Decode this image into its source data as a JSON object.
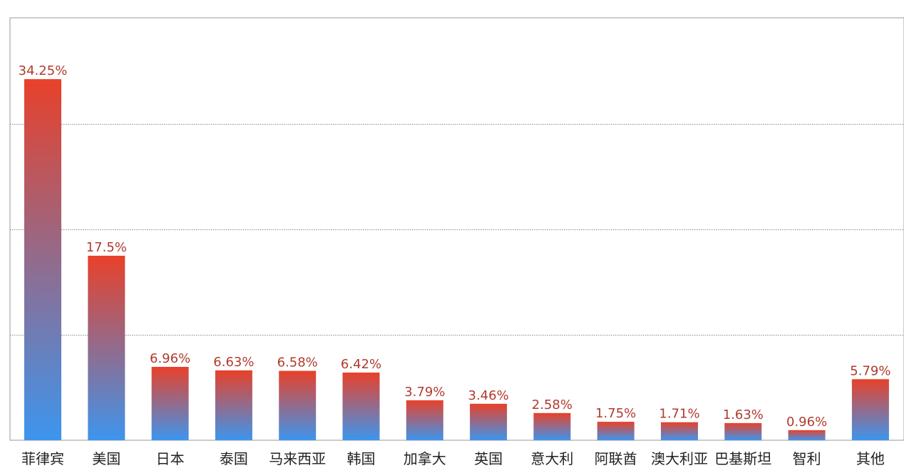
{
  "chart_data": {
    "type": "bar",
    "categories": [
      "菲律宾",
      "美国",
      "日本",
      "泰国",
      "马来西亚",
      "韩国",
      "加拿大",
      "英国",
      "意大利",
      "阿联酋",
      "澳大利亚",
      "巴基斯坦",
      "智利",
      "其他"
    ],
    "values": [
      34.25,
      17.5,
      6.96,
      6.63,
      6.58,
      6.42,
      3.79,
      3.46,
      2.58,
      1.75,
      1.71,
      1.63,
      0.96,
      5.79
    ],
    "value_labels": [
      "34.25%",
      "17.5%",
      "6.96%",
      "6.63%",
      "6.58%",
      "6.42%",
      "3.79%",
      "3.46%",
      "2.58%",
      "1.75%",
      "1.71%",
      "1.63%",
      "0.96%",
      "5.79%"
    ],
    "ylim": [
      0,
      40
    ],
    "gridlines": [
      10,
      20,
      30
    ],
    "grid": true,
    "bar_gradient": {
      "top": "#e8412a",
      "bottom": "#3d95ee"
    },
    "label_color": "#b03a2e",
    "axis_label_color": "#222222",
    "grid_color": "#8a8a8a",
    "frame_color": "#9a9a9a"
  }
}
